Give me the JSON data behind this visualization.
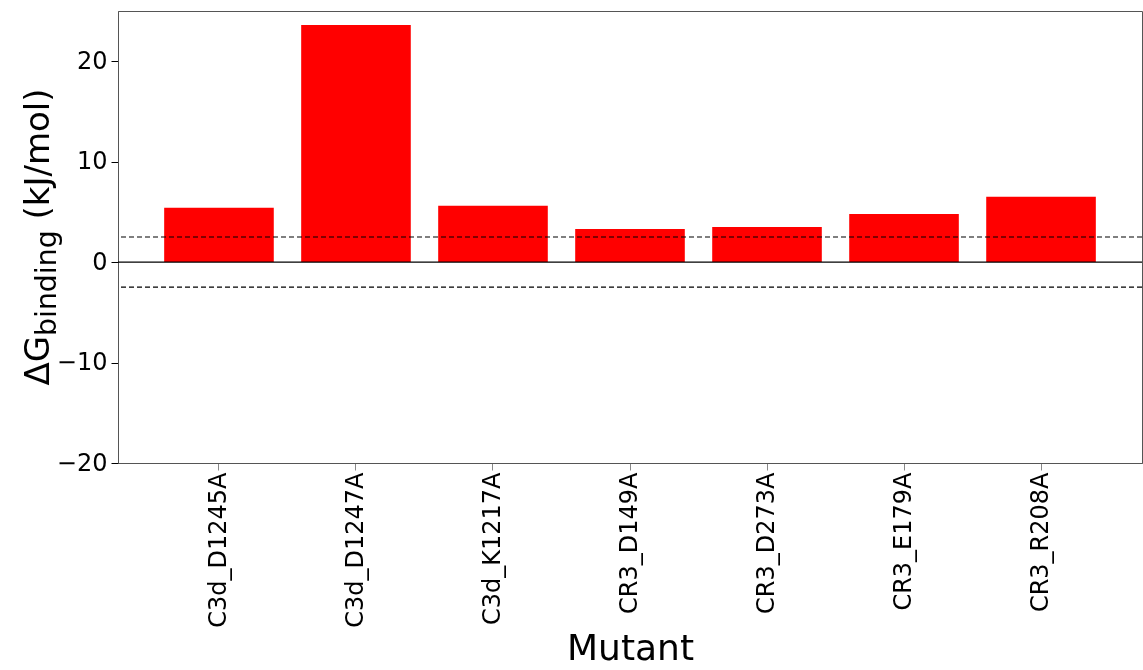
{
  "chart_data": {
    "type": "bar",
    "xlabel": "Mutant",
    "ylabel": "ΔG$_{binding}$ (kJ/mol)",
    "categories": [
      "C3d_D1245A",
      "C3d_D1247A",
      "C3d_K1217A",
      "CR3_D149A",
      "CR3_D273A",
      "CR3_E179A",
      "CR3_R208A"
    ],
    "values": [
      5.4,
      23.6,
      5.6,
      3.3,
      3.5,
      4.8,
      6.5
    ],
    "color": "#ff0000",
    "ylim": [
      -20,
      25
    ],
    "yticks": [
      -20,
      -10,
      0,
      10,
      20
    ],
    "grid": false,
    "ref_lines": [
      {
        "axis": "y",
        "value": 0,
        "color": "#000000",
        "line_style": "solid"
      },
      {
        "axis": "y",
        "value": 2.5,
        "color": "#000000",
        "line_style": "dashed"
      },
      {
        "axis": "y",
        "value": -2.5,
        "color": "#000000",
        "line_style": "dashed"
      }
    ]
  }
}
